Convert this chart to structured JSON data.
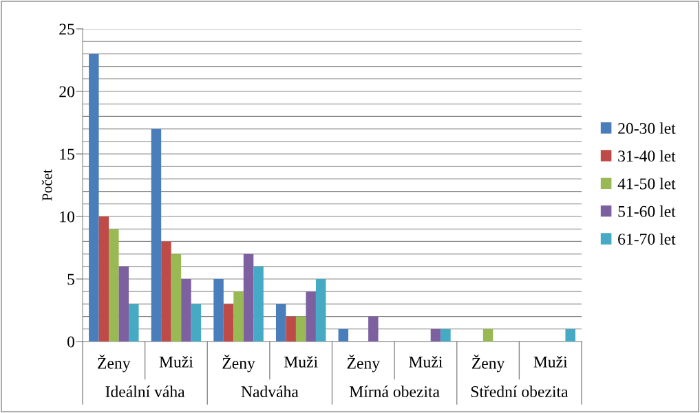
{
  "chart_data": {
    "type": "bar",
    "ylabel": "Počet",
    "categories": [
      "Ženy",
      "Muži",
      "Ženy",
      "Muži",
      "Ženy",
      "Muži",
      "Ženy",
      "Muži"
    ],
    "annotations": [
      "Ideální váha",
      "Nadváha",
      "Mírná obezita",
      "Střední obezita"
    ],
    "series": [
      {
        "name": "20-30 let",
        "color": "#4a7ebb",
        "values": [
          23,
          17,
          5,
          3,
          1,
          0,
          0,
          0
        ]
      },
      {
        "name": "31-40 let",
        "color": "#be4b48",
        "values": [
          10,
          8,
          3,
          2,
          0,
          0,
          0,
          0
        ]
      },
      {
        "name": "41-50 let",
        "color": "#98b954",
        "values": [
          9,
          7,
          4,
          2,
          0,
          0,
          1,
          0
        ]
      },
      {
        "name": "51-60 let",
        "color": "#7d60a0",
        "values": [
          6,
          5,
          7,
          4,
          2,
          1,
          0,
          0
        ]
      },
      {
        "name": "61-70 let",
        "color": "#46aac5",
        "values": [
          3,
          3,
          6,
          5,
          0,
          1,
          0,
          1
        ]
      }
    ],
    "ylim": [
      0,
      25
    ],
    "yticks": [
      0,
      {
        "value": 1,
        "label": null
      },
      {
        "value": 2,
        "label": null
      },
      {
        "value": 3,
        "label": null
      },
      {
        "value": 4,
        "label": null
      },
      5,
      {
        "value": 6,
        "label": null
      },
      {
        "value": 7,
        "label": null
      },
      {
        "value": 8,
        "label": null
      },
      {
        "value": 9,
        "label": null
      },
      10,
      {
        "value": 11,
        "label": null
      },
      {
        "value": 12,
        "label": null
      },
      {
        "value": 13,
        "label": null
      },
      {
        "value": 14,
        "label": null
      },
      15,
      {
        "value": 16,
        "label": null
      },
      {
        "value": 17,
        "label": null
      },
      {
        "value": 18,
        "label": null
      },
      {
        "value": 19,
        "label": null
      },
      20,
      {
        "value": 21,
        "label": null
      },
      {
        "value": 22,
        "label": null
      },
      {
        "value": 23,
        "label": null
      },
      {
        "value": 24,
        "label": null
      },
      25
    ],
    "grid": "y",
    "legend": "right"
  }
}
